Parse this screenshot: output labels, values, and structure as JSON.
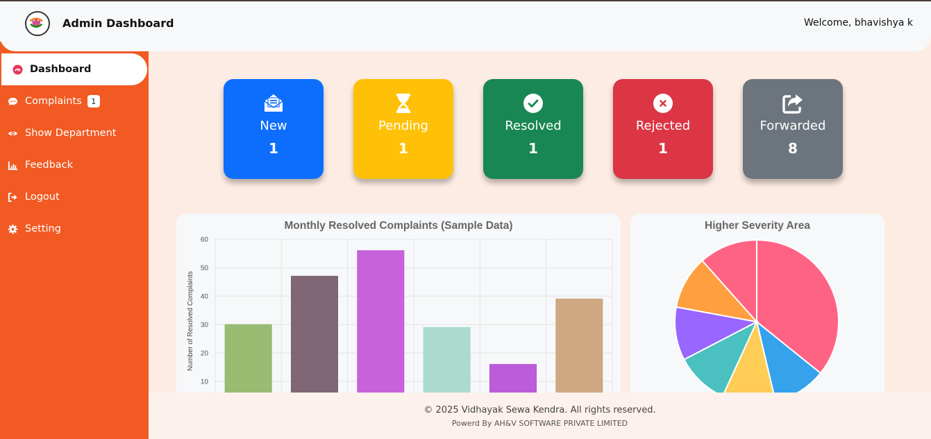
{
  "header": {
    "brand": "Admin Dashboard",
    "welcome": "Welcome, bhavishya k",
    "logo_icon": "lotus-emblem-icon"
  },
  "sidebar": {
    "items": [
      {
        "label": "Dashboard",
        "icon": "gauge-icon",
        "active": true
      },
      {
        "label": "Complaints",
        "icon": "chat-bubble-icon",
        "badge": "1"
      },
      {
        "label": "Show Department",
        "icon": "eye-icon"
      },
      {
        "label": "Feedback",
        "icon": "chart-icon"
      },
      {
        "label": "Logout",
        "icon": "logout-icon"
      },
      {
        "label": "Setting",
        "icon": "gear-icon"
      }
    ]
  },
  "cards": [
    {
      "label": "New",
      "count": "1",
      "color": "#0d6efd",
      "icon": "envelope-open-icon"
    },
    {
      "label": "Pending",
      "count": "1",
      "color": "#ffc107",
      "icon": "hourglass-icon"
    },
    {
      "label": "Resolved",
      "count": "1",
      "color": "#198754",
      "icon": "check-circle-icon"
    },
    {
      "label": "Rejected",
      "count": "1",
      "color": "#dc3545",
      "icon": "x-circle-icon"
    },
    {
      "label": "Forwarded",
      "count": "8",
      "color": "#6c757d",
      "icon": "share-icon"
    }
  ],
  "charts": {
    "bar_title": "Monthly Resolved Complaints (Sample Data)",
    "pie_title": "Higher Severity Area"
  },
  "chart_data": [
    {
      "type": "bar",
      "title": "Monthly Resolved Complaints (Sample Data)",
      "xlabel": "",
      "ylabel": "Number of Resolved Complaints",
      "ylim": [
        0,
        60
      ],
      "yticks": [
        "60",
        "50",
        "40",
        "30",
        "20",
        "10"
      ],
      "categories": [
        "",
        "",
        "",
        "",
        "",
        ""
      ],
      "values": [
        30,
        47,
        56,
        29,
        16,
        39
      ],
      "colors": [
        "#93b86c",
        "#7a5f6e",
        "#c55ad8",
        "#a6d9cc",
        "#b853d7",
        "#cca37a"
      ],
      "grid": true
    },
    {
      "type": "pie",
      "title": "Higher Severity Area",
      "values": [
        34,
        10,
        10,
        10,
        10,
        10,
        11
      ],
      "colors": [
        "#ff6384",
        "#36a2eb",
        "#ffcd56",
        "#4bc0c0",
        "#9966ff",
        "#ff9f40",
        "#ff6384"
      ]
    }
  ],
  "footer": {
    "copyright": "© 2025 Vidhayak Sewa Kendra. All rights reserved.",
    "powered": "Powerd By AH&V SOFTWARE PRIVATE LIMITED"
  }
}
